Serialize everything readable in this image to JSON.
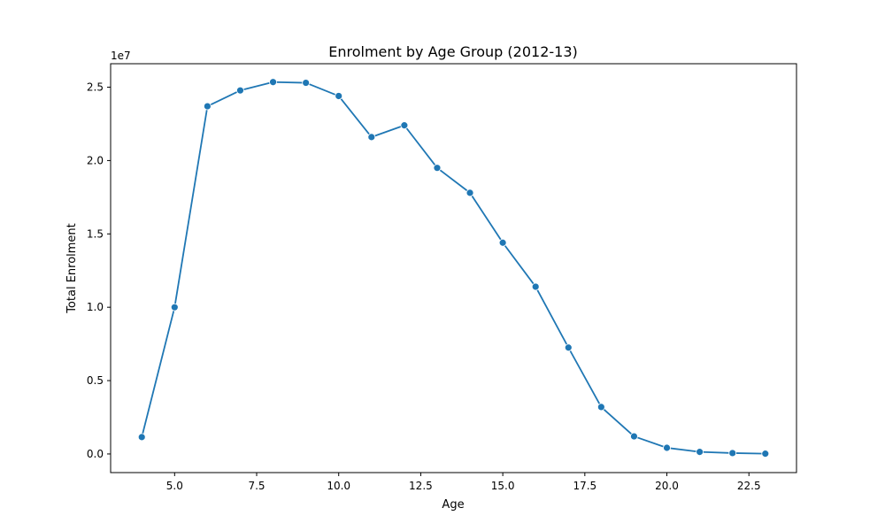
{
  "chart_data": {
    "type": "line",
    "title": "Enrolment by Age Group (2012-13)",
    "xlabel": "Age",
    "ylabel": "Total Enrolment",
    "y_offset_label": "1e7",
    "xlim": [
      3.05,
      23.95
    ],
    "ylim": [
      -1270000,
      26600000
    ],
    "x_ticks": [
      5.0,
      7.5,
      10.0,
      12.5,
      15.0,
      17.5,
      20.0,
      22.5
    ],
    "x_tick_labels": [
      "5.0",
      "7.5",
      "10.0",
      "12.5",
      "15.0",
      "17.5",
      "20.0",
      "22.5"
    ],
    "y_ticks": [
      0,
      5000000,
      10000000,
      15000000,
      20000000,
      25000000
    ],
    "y_tick_labels": [
      "0.0",
      "0.5",
      "1.0",
      "1.5",
      "2.0",
      "2.5"
    ],
    "grid": false,
    "color": "#1f77b4",
    "series": [
      {
        "x": [
          4,
          5,
          6,
          7,
          8,
          9,
          10,
          11,
          12,
          13,
          14,
          15,
          16,
          17,
          18,
          19,
          20,
          21,
          22,
          23
        ],
        "values": [
          1150000,
          10000000,
          23700000,
          24780000,
          25350000,
          25300000,
          24400000,
          21600000,
          22400000,
          19500000,
          17800000,
          14400000,
          11400000,
          7250000,
          3200000,
          1200000,
          420000,
          140000,
          60000,
          20000
        ]
      }
    ]
  }
}
